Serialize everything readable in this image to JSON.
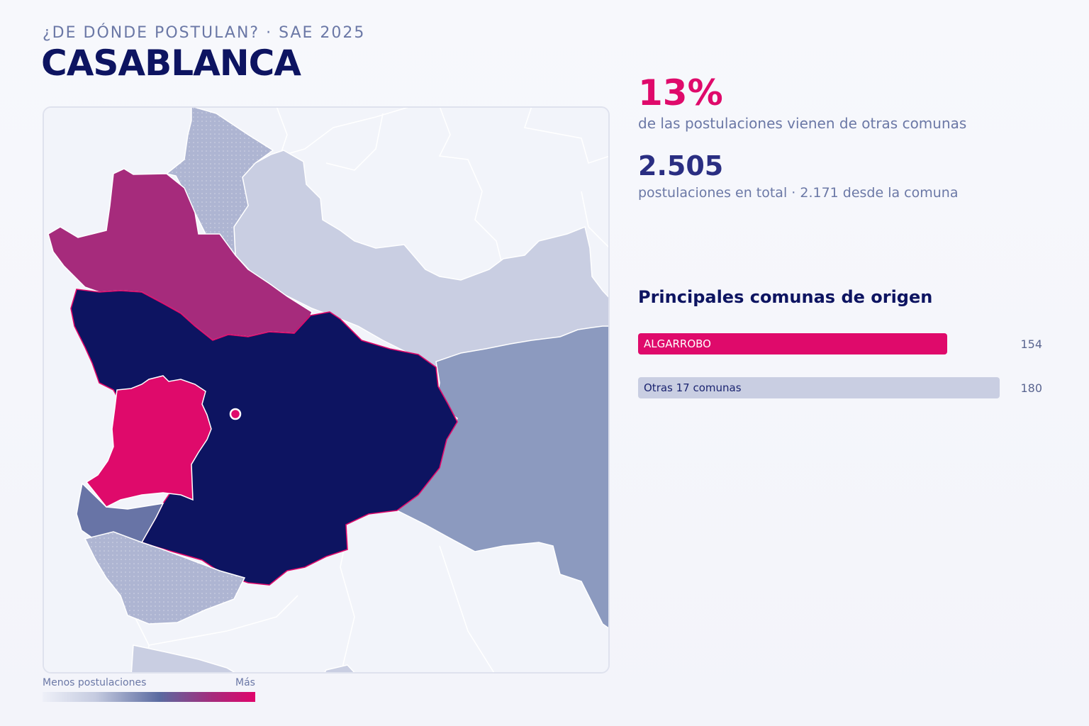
{
  "header": {
    "kicker": "¿DE DÓNDE POSTULAN? · SAE 2025",
    "title": "CASABLANCA"
  },
  "stats": {
    "share_value": "13%",
    "share_label": "de las postulaciones vienen de otras comunas",
    "total_value": "2.505",
    "total_label": "postulaciones en total · 2.171 desde la comuna"
  },
  "colors": {
    "accent": "#df0a6b",
    "navy": "#0d1461",
    "muted": "#6b78a6",
    "other_bar": "#c9cee2"
  },
  "origins": {
    "title": "Principales comunas de origen",
    "max": 180,
    "items": [
      {
        "name": "ALGARROBO",
        "value": 154,
        "color": "#df0a6b",
        "text_color": "#ffffff"
      },
      {
        "name": "Otras 17 comunas",
        "value": 180,
        "color": "#c9cee2",
        "text_color": "#1b2470"
      }
    ]
  },
  "legend": {
    "min_label": "Menos postulaciones",
    "max_label": "Más"
  }
}
